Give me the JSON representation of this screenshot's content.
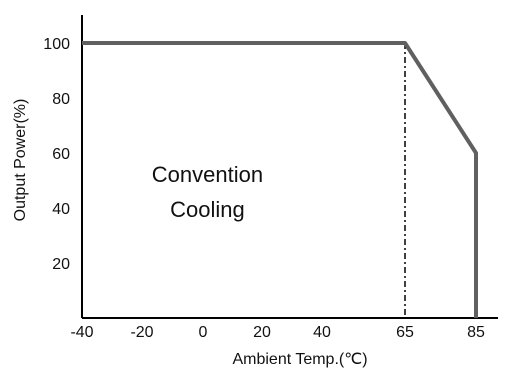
{
  "chart_data": {
    "type": "line",
    "title": "",
    "xlabel": "Ambient Temp.(℃)",
    "ylabel": "Output Power(%)",
    "xlim": [
      -40,
      90
    ],
    "ylim": [
      0,
      110
    ],
    "x_ticks": [
      -40,
      -20,
      0,
      20,
      40,
      65,
      85
    ],
    "y_ticks": [
      20,
      40,
      60,
      80,
      100
    ],
    "series": [
      {
        "x": [
          -40,
          65,
          85,
          85
        ],
        "y": [
          100,
          100,
          60,
          0
        ]
      }
    ],
    "reference_lines": [
      {
        "x": 65,
        "style": "dash-dot",
        "y_from": 0,
        "y_to": 100
      }
    ],
    "annotations": [
      {
        "lines": [
          "Convention",
          "Cooling"
        ],
        "x": 1.5,
        "y": 44
      }
    ],
    "grid": false,
    "colors": {
      "series": "#606060",
      "axis": "#000000",
      "reference": "#000000"
    }
  }
}
